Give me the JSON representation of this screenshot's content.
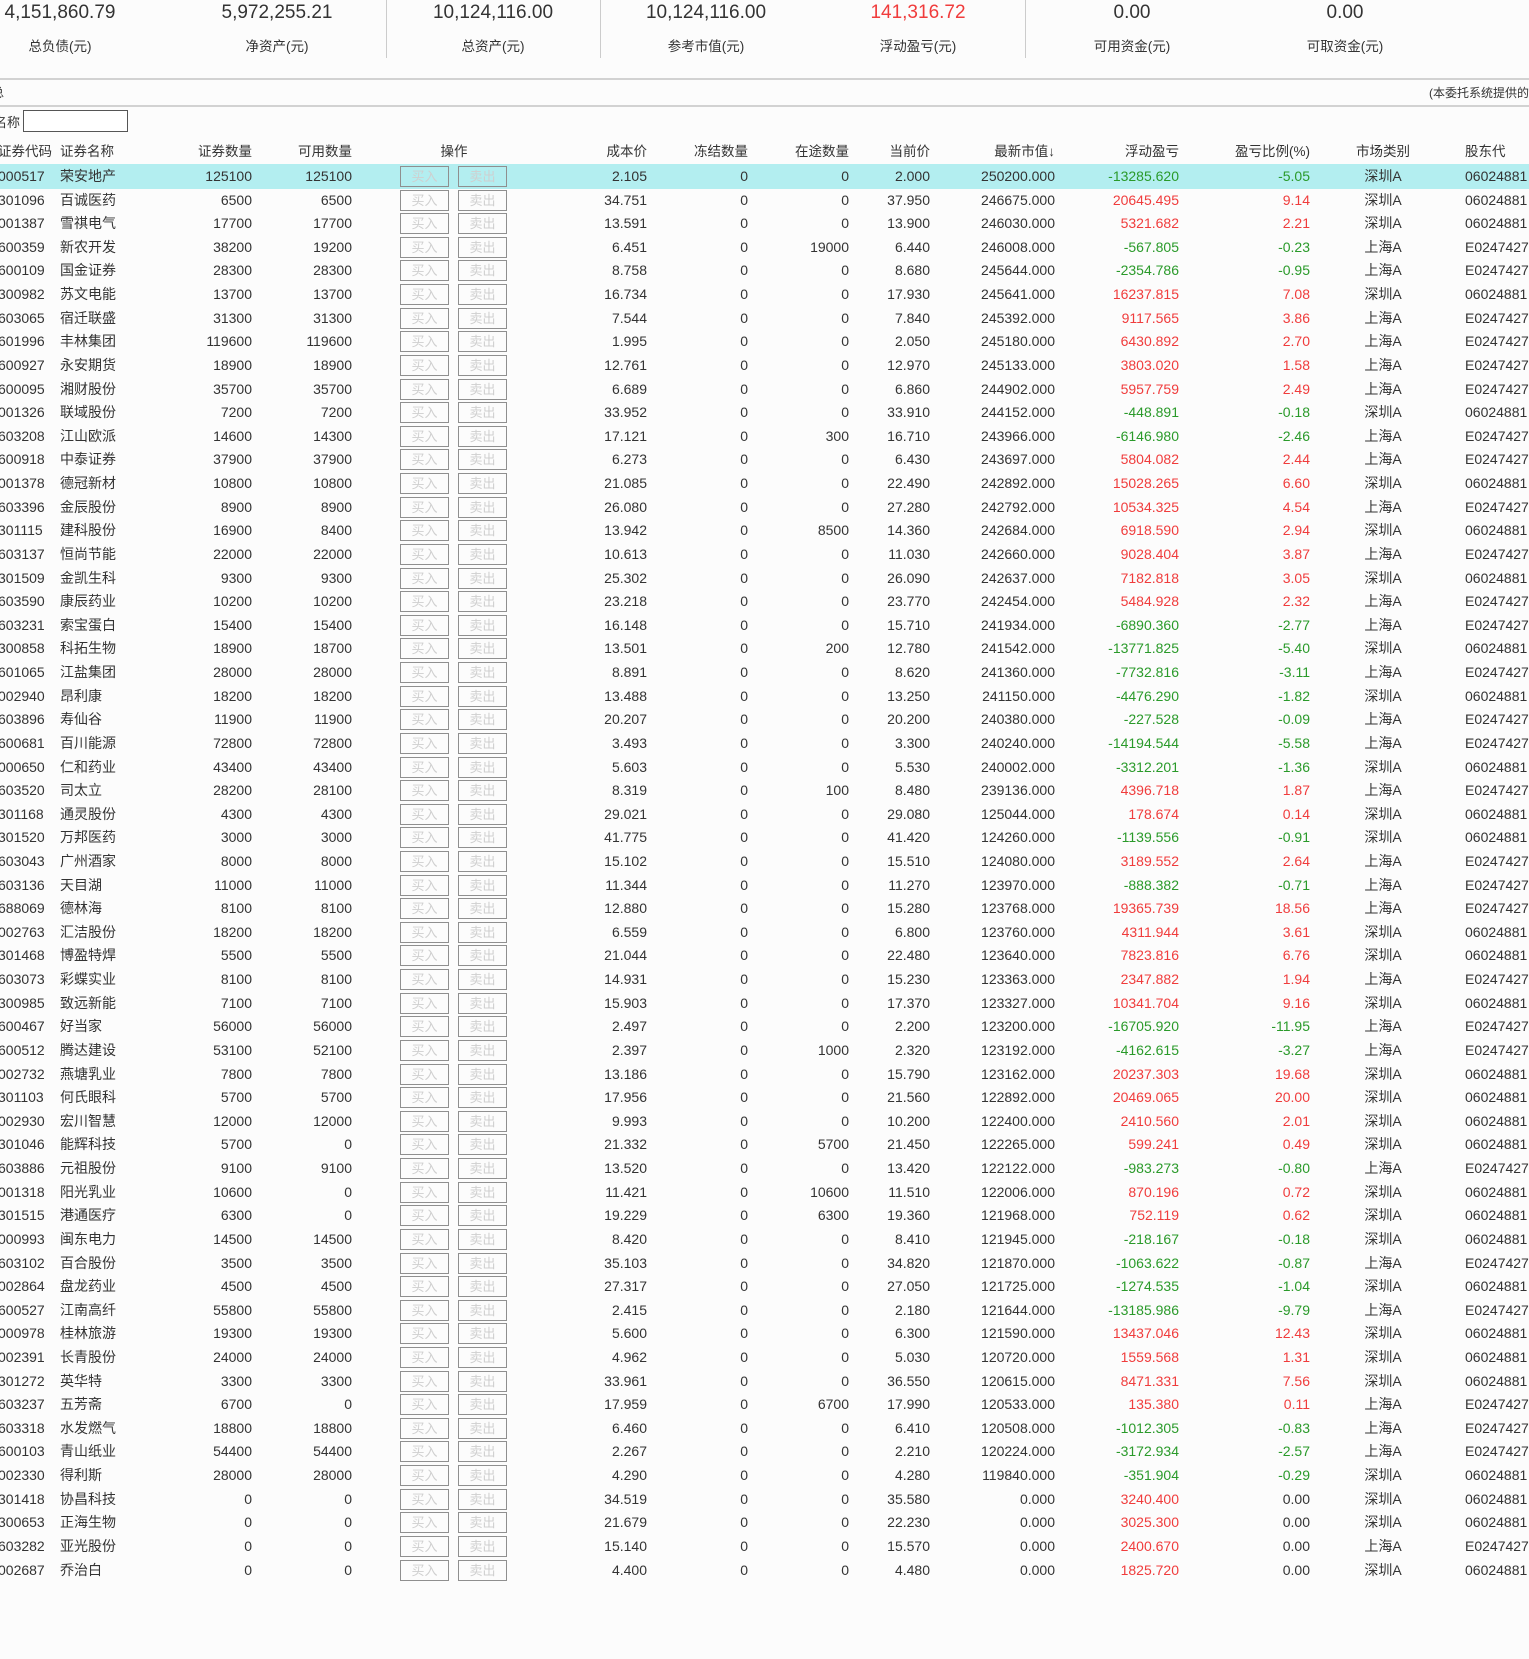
{
  "summary": [
    {
      "label": "总负债(元)",
      "value": "4,151,860.79"
    },
    {
      "label": "净资产(元)",
      "value": "5,972,255.21"
    },
    {
      "label": "总资产(元)",
      "value": "10,124,116.00"
    },
    {
      "label": "参考市值(元)",
      "value": "10,124,116.00"
    },
    {
      "label": "浮动盈亏(元)",
      "value": "141,316.72",
      "color": "#f03c3c"
    },
    {
      "label": "可用资金(元)",
      "value": "0.00"
    },
    {
      "label": "可取资金(元)",
      "value": "0.00"
    },
    {
      "label": "资",
      "value": ""
    }
  ],
  "notice_left": "总",
  "notice_right": "(本委托系统提供的",
  "filter": {
    "label": "名称",
    "value": ""
  },
  "columns": [
    "证券代码",
    "证券名称",
    "证券数量",
    "可用数量",
    "操作",
    "成本价",
    "冻结数量",
    "在途数量",
    "当前价",
    "最新市值↓",
    "浮动盈亏",
    "盈亏比例(%)",
    "市场类别",
    "股东代"
  ],
  "buttons": {
    "buy": "买入",
    "sell": "卖出"
  },
  "colors": {
    "up": "#f03c3c",
    "down": "#2a9a2a",
    "neutral": "#333333",
    "selected_row": "#b3eef0"
  },
  "selected_row": 0,
  "holder_codes": {
    "深圳A": "06024881",
    "上海A": "E0247427"
  },
  "rows": [
    [
      "000517",
      "荣安地产",
      "125100",
      "125100",
      "2.105",
      "0",
      "0",
      "2.000",
      "250200.000",
      "-13285.620",
      "-5.05",
      "深圳A"
    ],
    [
      "301096",
      "百诚医药",
      "6500",
      "6500",
      "34.751",
      "0",
      "0",
      "37.950",
      "246675.000",
      "20645.495",
      "9.14",
      "深圳A"
    ],
    [
      "001387",
      "雪祺电气",
      "17700",
      "17700",
      "13.591",
      "0",
      "0",
      "13.900",
      "246030.000",
      "5321.682",
      "2.21",
      "深圳A"
    ],
    [
      "600359",
      "新农开发",
      "38200",
      "19200",
      "6.451",
      "0",
      "19000",
      "6.440",
      "246008.000",
      "-567.805",
      "-0.23",
      "上海A"
    ],
    [
      "600109",
      "国金证券",
      "28300",
      "28300",
      "8.758",
      "0",
      "0",
      "8.680",
      "245644.000",
      "-2354.786",
      "-0.95",
      "上海A"
    ],
    [
      "300982",
      "苏文电能",
      "13700",
      "13700",
      "16.734",
      "0",
      "0",
      "17.930",
      "245641.000",
      "16237.815",
      "7.08",
      "深圳A"
    ],
    [
      "603065",
      "宿迁联盛",
      "31300",
      "31300",
      "7.544",
      "0",
      "0",
      "7.840",
      "245392.000",
      "9117.565",
      "3.86",
      "上海A"
    ],
    [
      "601996",
      "丰林集团",
      "119600",
      "119600",
      "1.995",
      "0",
      "0",
      "2.050",
      "245180.000",
      "6430.892",
      "2.70",
      "上海A"
    ],
    [
      "600927",
      "永安期货",
      "18900",
      "18900",
      "12.761",
      "0",
      "0",
      "12.970",
      "245133.000",
      "3803.020",
      "1.58",
      "上海A"
    ],
    [
      "600095",
      "湘财股份",
      "35700",
      "35700",
      "6.689",
      "0",
      "0",
      "6.860",
      "244902.000",
      "5957.759",
      "2.49",
      "上海A"
    ],
    [
      "001326",
      "联域股份",
      "7200",
      "7200",
      "33.952",
      "0",
      "0",
      "33.910",
      "244152.000",
      "-448.891",
      "-0.18",
      "深圳A"
    ],
    [
      "603208",
      "江山欧派",
      "14600",
      "14300",
      "17.121",
      "0",
      "300",
      "16.710",
      "243966.000",
      "-6146.980",
      "-2.46",
      "上海A"
    ],
    [
      "600918",
      "中泰证券",
      "37900",
      "37900",
      "6.273",
      "0",
      "0",
      "6.430",
      "243697.000",
      "5804.082",
      "2.44",
      "上海A"
    ],
    [
      "001378",
      "德冠新材",
      "10800",
      "10800",
      "21.085",
      "0",
      "0",
      "22.490",
      "242892.000",
      "15028.265",
      "6.60",
      "深圳A"
    ],
    [
      "603396",
      "金辰股份",
      "8900",
      "8900",
      "26.080",
      "0",
      "0",
      "27.280",
      "242792.000",
      "10534.325",
      "4.54",
      "上海A"
    ],
    [
      "301115",
      "建科股份",
      "16900",
      "8400",
      "13.942",
      "0",
      "8500",
      "14.360",
      "242684.000",
      "6918.590",
      "2.94",
      "深圳A"
    ],
    [
      "603137",
      "恒尚节能",
      "22000",
      "22000",
      "10.613",
      "0",
      "0",
      "11.030",
      "242660.000",
      "9028.404",
      "3.87",
      "上海A"
    ],
    [
      "301509",
      "金凯生科",
      "9300",
      "9300",
      "25.302",
      "0",
      "0",
      "26.090",
      "242637.000",
      "7182.818",
      "3.05",
      "深圳A"
    ],
    [
      "603590",
      "康辰药业",
      "10200",
      "10200",
      "23.218",
      "0",
      "0",
      "23.770",
      "242454.000",
      "5484.928",
      "2.32",
      "上海A"
    ],
    [
      "603231",
      "索宝蛋白",
      "15400",
      "15400",
      "16.148",
      "0",
      "0",
      "15.710",
      "241934.000",
      "-6890.360",
      "-2.77",
      "上海A"
    ],
    [
      "300858",
      "科拓生物",
      "18900",
      "18700",
      "13.501",
      "0",
      "200",
      "12.780",
      "241542.000",
      "-13771.825",
      "-5.40",
      "深圳A"
    ],
    [
      "601065",
      "江盐集团",
      "28000",
      "28000",
      "8.891",
      "0",
      "0",
      "8.620",
      "241360.000",
      "-7732.816",
      "-3.11",
      "上海A"
    ],
    [
      "002940",
      "昂利康",
      "18200",
      "18200",
      "13.488",
      "0",
      "0",
      "13.250",
      "241150.000",
      "-4476.290",
      "-1.82",
      "深圳A"
    ],
    [
      "603896",
      "寿仙谷",
      "11900",
      "11900",
      "20.207",
      "0",
      "0",
      "20.200",
      "240380.000",
      "-227.528",
      "-0.09",
      "上海A"
    ],
    [
      "600681",
      "百川能源",
      "72800",
      "72800",
      "3.493",
      "0",
      "0",
      "3.300",
      "240240.000",
      "-14194.544",
      "-5.58",
      "上海A"
    ],
    [
      "000650",
      "仁和药业",
      "43400",
      "43400",
      "5.603",
      "0",
      "0",
      "5.530",
      "240002.000",
      "-3312.201",
      "-1.36",
      "深圳A"
    ],
    [
      "603520",
      "司太立",
      "28200",
      "28100",
      "8.319",
      "0",
      "100",
      "8.480",
      "239136.000",
      "4396.718",
      "1.87",
      "上海A"
    ],
    [
      "301168",
      "通灵股份",
      "4300",
      "4300",
      "29.021",
      "0",
      "0",
      "29.080",
      "125044.000",
      "178.674",
      "0.14",
      "深圳A"
    ],
    [
      "301520",
      "万邦医药",
      "3000",
      "3000",
      "41.775",
      "0",
      "0",
      "41.420",
      "124260.000",
      "-1139.556",
      "-0.91",
      "深圳A"
    ],
    [
      "603043",
      "广州酒家",
      "8000",
      "8000",
      "15.102",
      "0",
      "0",
      "15.510",
      "124080.000",
      "3189.552",
      "2.64",
      "上海A"
    ],
    [
      "603136",
      "天目湖",
      "11000",
      "11000",
      "11.344",
      "0",
      "0",
      "11.270",
      "123970.000",
      "-888.382",
      "-0.71",
      "上海A"
    ],
    [
      "688069",
      "德林海",
      "8100",
      "8100",
      "12.880",
      "0",
      "0",
      "15.280",
      "123768.000",
      "19365.739",
      "18.56",
      "上海A"
    ],
    [
      "002763",
      "汇洁股份",
      "18200",
      "18200",
      "6.559",
      "0",
      "0",
      "6.800",
      "123760.000",
      "4311.944",
      "3.61",
      "深圳A"
    ],
    [
      "301468",
      "博盈特焊",
      "5500",
      "5500",
      "21.044",
      "0",
      "0",
      "22.480",
      "123640.000",
      "7823.816",
      "6.76",
      "深圳A"
    ],
    [
      "603073",
      "彩蝶实业",
      "8100",
      "8100",
      "14.931",
      "0",
      "0",
      "15.230",
      "123363.000",
      "2347.882",
      "1.94",
      "上海A"
    ],
    [
      "300985",
      "致远新能",
      "7100",
      "7100",
      "15.903",
      "0",
      "0",
      "17.370",
      "123327.000",
      "10341.704",
      "9.16",
      "深圳A"
    ],
    [
      "600467",
      "好当家",
      "56000",
      "56000",
      "2.497",
      "0",
      "0",
      "2.200",
      "123200.000",
      "-16705.920",
      "-11.95",
      "上海A"
    ],
    [
      "600512",
      "腾达建设",
      "53100",
      "52100",
      "2.397",
      "0",
      "1000",
      "2.320",
      "123192.000",
      "-4162.615",
      "-3.27",
      "上海A"
    ],
    [
      "002732",
      "燕塘乳业",
      "7800",
      "7800",
      "13.186",
      "0",
      "0",
      "15.790",
      "123162.000",
      "20237.303",
      "19.68",
      "深圳A"
    ],
    [
      "301103",
      "何氏眼科",
      "5700",
      "5700",
      "17.956",
      "0",
      "0",
      "21.560",
      "122892.000",
      "20469.065",
      "20.00",
      "深圳A"
    ],
    [
      "002930",
      "宏川智慧",
      "12000",
      "12000",
      "9.993",
      "0",
      "0",
      "10.200",
      "122400.000",
      "2410.560",
      "2.01",
      "深圳A"
    ],
    [
      "301046",
      "能辉科技",
      "5700",
      "0",
      "21.332",
      "0",
      "5700",
      "21.450",
      "122265.000",
      "599.241",
      "0.49",
      "深圳A"
    ],
    [
      "603886",
      "元祖股份",
      "9100",
      "9100",
      "13.520",
      "0",
      "0",
      "13.420",
      "122122.000",
      "-983.273",
      "-0.80",
      "上海A"
    ],
    [
      "001318",
      "阳光乳业",
      "10600",
      "0",
      "11.421",
      "0",
      "10600",
      "11.510",
      "122006.000",
      "870.196",
      "0.72",
      "深圳A"
    ],
    [
      "301515",
      "港通医疗",
      "6300",
      "0",
      "19.229",
      "0",
      "6300",
      "19.360",
      "121968.000",
      "752.119",
      "0.62",
      "深圳A"
    ],
    [
      "000993",
      "闽东电力",
      "14500",
      "14500",
      "8.420",
      "0",
      "0",
      "8.410",
      "121945.000",
      "-218.167",
      "-0.18",
      "深圳A"
    ],
    [
      "603102",
      "百合股份",
      "3500",
      "3500",
      "35.103",
      "0",
      "0",
      "34.820",
      "121870.000",
      "-1063.622",
      "-0.87",
      "上海A"
    ],
    [
      "002864",
      "盘龙药业",
      "4500",
      "4500",
      "27.317",
      "0",
      "0",
      "27.050",
      "121725.000",
      "-1274.535",
      "-1.04",
      "深圳A"
    ],
    [
      "600527",
      "江南高纤",
      "55800",
      "55800",
      "2.415",
      "0",
      "0",
      "2.180",
      "121644.000",
      "-13185.986",
      "-9.79",
      "上海A"
    ],
    [
      "000978",
      "桂林旅游",
      "19300",
      "19300",
      "5.600",
      "0",
      "0",
      "6.300",
      "121590.000",
      "13437.046",
      "12.43",
      "深圳A"
    ],
    [
      "002391",
      "长青股份",
      "24000",
      "24000",
      "4.962",
      "0",
      "0",
      "5.030",
      "120720.000",
      "1559.568",
      "1.31",
      "深圳A"
    ],
    [
      "301272",
      "英华特",
      "3300",
      "3300",
      "33.961",
      "0",
      "0",
      "36.550",
      "120615.000",
      "8471.331",
      "7.56",
      "深圳A"
    ],
    [
      "603237",
      "五芳斋",
      "6700",
      "0",
      "17.959",
      "0",
      "6700",
      "17.990",
      "120533.000",
      "135.380",
      "0.11",
      "上海A"
    ],
    [
      "603318",
      "水发燃气",
      "18800",
      "18800",
      "6.460",
      "0",
      "0",
      "6.410",
      "120508.000",
      "-1012.305",
      "-0.83",
      "上海A"
    ],
    [
      "600103",
      "青山纸业",
      "54400",
      "54400",
      "2.267",
      "0",
      "0",
      "2.210",
      "120224.000",
      "-3172.934",
      "-2.57",
      "上海A"
    ],
    [
      "002330",
      "得利斯",
      "28000",
      "28000",
      "4.290",
      "0",
      "0",
      "4.280",
      "119840.000",
      "-351.904",
      "-0.29",
      "深圳A"
    ],
    [
      "301418",
      "协昌科技",
      "0",
      "0",
      "34.519",
      "0",
      "0",
      "35.580",
      "0.000",
      "3240.400",
      "0.00",
      "深圳A"
    ],
    [
      "300653",
      "正海生物",
      "0",
      "0",
      "21.679",
      "0",
      "0",
      "22.230",
      "0.000",
      "3025.300",
      "0.00",
      "深圳A"
    ],
    [
      "603282",
      "亚光股份",
      "0",
      "0",
      "15.140",
      "0",
      "0",
      "15.570",
      "0.000",
      "2400.670",
      "0.00",
      "上海A"
    ],
    [
      "002687",
      "乔治白",
      "0",
      "0",
      "4.400",
      "0",
      "0",
      "4.480",
      "0.000",
      "1825.720",
      "0.00",
      "深圳A"
    ]
  ]
}
